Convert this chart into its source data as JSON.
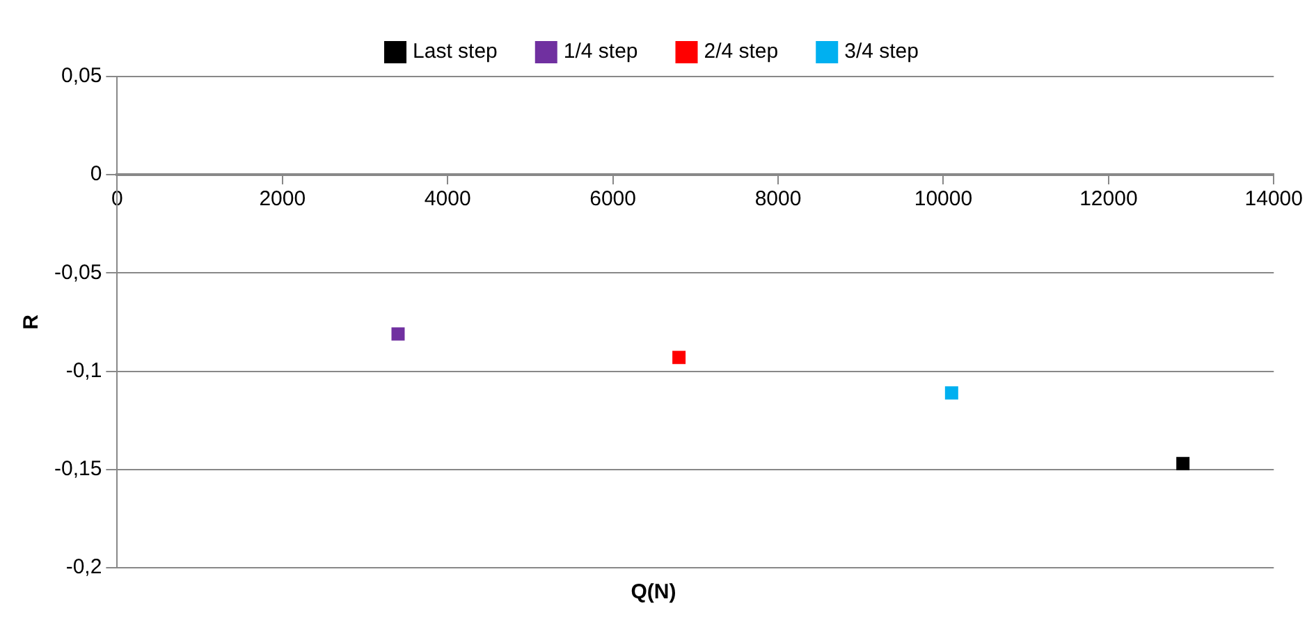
{
  "chart_data": {
    "type": "scatter",
    "xlabel": "Q(N)",
    "ylabel": "R",
    "xlim": [
      0,
      14000
    ],
    "xticks": [
      0,
      2000,
      4000,
      6000,
      8000,
      10000,
      12000,
      14000
    ],
    "ylim": [
      -0.2,
      0.05
    ],
    "yticks": [
      {
        "value": 0.05,
        "label": "0,05"
      },
      {
        "value": 0,
        "label": "0"
      },
      {
        "value": -0.05,
        "label": "-0,05"
      },
      {
        "value": -0.1,
        "label": "-0,1"
      },
      {
        "value": -0.15,
        "label": "-0,15"
      },
      {
        "value": -0.2,
        "label": "-0,2"
      }
    ],
    "grid": "y",
    "legend": "top",
    "marker": "square",
    "series": [
      {
        "name": "Last step",
        "color": "#000000",
        "x": [
          12900
        ],
        "values": [
          -0.147
        ]
      },
      {
        "name": "1/4 step",
        "color": "#7030a0",
        "x": [
          3400
        ],
        "values": [
          -0.081
        ]
      },
      {
        "name": "2/4 step",
        "color": "#ff0000",
        "x": [
          6800
        ],
        "values": [
          -0.093
        ]
      },
      {
        "name": "3/4 step",
        "color": "#00b0f0",
        "x": [
          10100
        ],
        "values": [
          -0.111
        ]
      }
    ]
  }
}
